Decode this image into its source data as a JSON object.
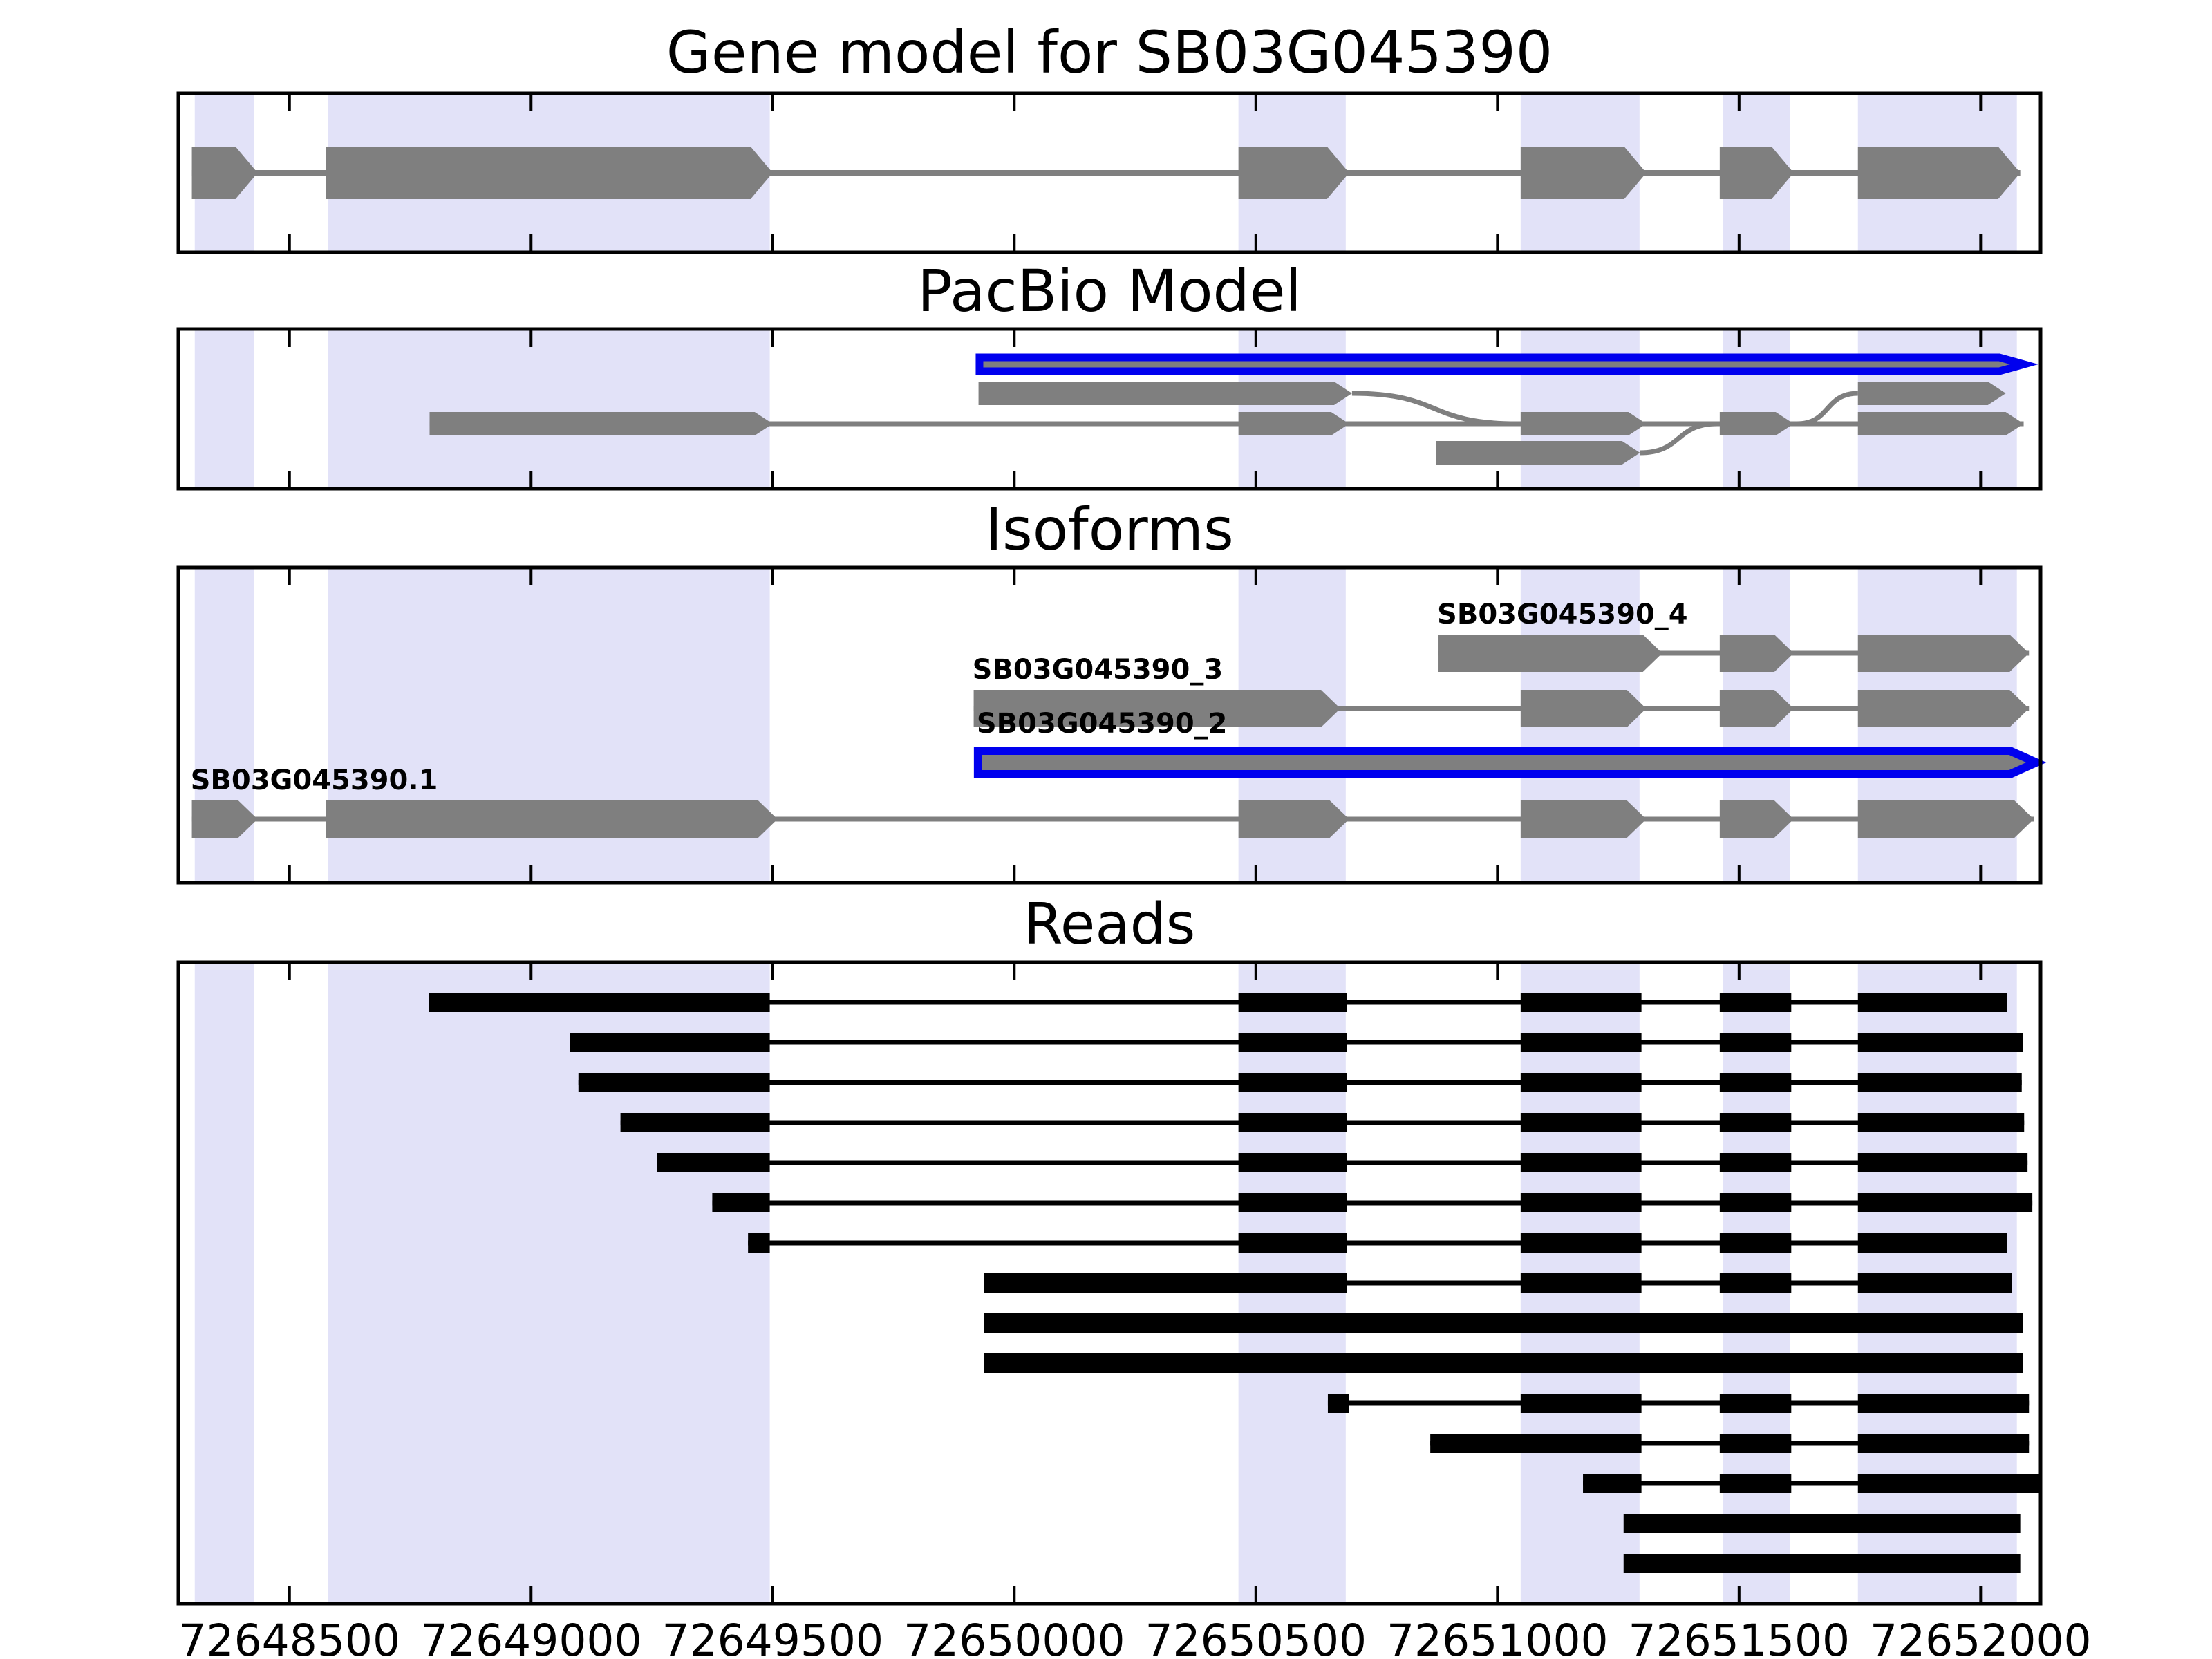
{
  "chart_data": {
    "type": "genomic-track-plot",
    "title": "Gene model for SB03G045390",
    "track_titles": [
      "Gene model for SB03G045390",
      "PacBio Model",
      "Isoforms",
      "Reads"
    ],
    "x_axis": {
      "xlim": [
        72648270,
        72652124
      ],
      "ticks": [
        72648500,
        72649000,
        72649500,
        72650000,
        72650500,
        72651000,
        72651500,
        72652000
      ],
      "tick_labels": [
        "72648500",
        "72649000",
        "72649500",
        "72650000",
        "72650500",
        "72651000",
        "72651500",
        "72652000"
      ]
    },
    "highlight_regions": [
      [
        72648304,
        72648426
      ],
      [
        72648580,
        72649494
      ],
      [
        72650464,
        72650686
      ],
      [
        72651048,
        72651294
      ],
      [
        72651467,
        72651606
      ],
      [
        72651746,
        72652075
      ]
    ],
    "gene_model": {
      "name": "SB03G045390",
      "exons": [
        [
          72648298,
          72648434
        ],
        [
          72648575,
          72649500
        ],
        [
          72650464,
          72650693
        ],
        [
          72651048,
          72651308
        ],
        [
          72651460,
          72651613
        ],
        [
          72651746,
          72652082
        ]
      ]
    },
    "pacbio_model": {
      "transcripts": [
        {
          "id": "pacbio-selected",
          "row": 0,
          "highlight": true,
          "draw_line": false,
          "exons": [
            [
              72649928,
              72652090
            ]
          ]
        },
        {
          "id": "pacbio-alt-a",
          "row": 1,
          "highlight": false,
          "draw_line": false,
          "exons": [
            [
              72649926,
              72650699
            ],
            [
              72651746,
              72652052
            ]
          ]
        },
        {
          "id": "pacbio-main",
          "row": 2,
          "highlight": false,
          "draw_line": true,
          "exons": [
            [
              72648790,
              72649500
            ],
            [
              72650464,
              72650693
            ],
            [
              72651048,
              72651308
            ],
            [
              72651460,
              72651613
            ],
            [
              72651746,
              72652089
            ]
          ]
        },
        {
          "id": "pacbio-alt-b",
          "row": 3,
          "highlight": false,
          "draw_line": false,
          "exons": [
            [
              72650873,
              72651295
            ]
          ]
        }
      ],
      "splice_curves": [
        {
          "from_bp": 72650699,
          "from_row": 1,
          "to_bp": 72651040,
          "to_row": 2
        },
        {
          "from_bp": 72651295,
          "from_row": 3,
          "to_bp": 72651455,
          "to_row": 2
        },
        {
          "from_bp": 72651620,
          "from_row": 2,
          "to_bp": 72651746,
          "to_row": 1
        }
      ]
    },
    "isoforms": [
      {
        "label": "SB03G045390_4",
        "highlight": false,
        "exons": [
          [
            72650878,
            72651341
          ],
          [
            72651460,
            72651613
          ],
          [
            72651746,
            72652100
          ]
        ]
      },
      {
        "label": "SB03G045390_3",
        "highlight": false,
        "exons": [
          [
            72649916,
            72650675
          ],
          [
            72651048,
            72651308
          ],
          [
            72651460,
            72651613
          ],
          [
            72651746,
            72652100
          ]
        ]
      },
      {
        "label": "SB03G045390_2",
        "highlight": true,
        "exons": [
          [
            72649925,
            72652115
          ]
        ]
      },
      {
        "label": "SB03G045390.1",
        "highlight": false,
        "exons": [
          [
            72648298,
            72648434
          ],
          [
            72648575,
            72649510
          ],
          [
            72650464,
            72650693
          ],
          [
            72651048,
            72651308
          ],
          [
            72651460,
            72651613
          ],
          [
            72651746,
            72652110
          ]
        ]
      }
    ],
    "reads": [
      {
        "blocks": [
          [
            72648788,
            72649494
          ],
          [
            72650464,
            72650688
          ],
          [
            72651048,
            72651298
          ],
          [
            72651460,
            72651608
          ],
          [
            72651746,
            72652055
          ]
        ]
      },
      {
        "blocks": [
          [
            72649080,
            72649494
          ],
          [
            72650464,
            72650688
          ],
          [
            72651048,
            72651298
          ],
          [
            72651460,
            72651608
          ],
          [
            72651746,
            72652088
          ]
        ]
      },
      {
        "blocks": [
          [
            72649098,
            72649494
          ],
          [
            72650464,
            72650688
          ],
          [
            72651048,
            72651298
          ],
          [
            72651460,
            72651608
          ],
          [
            72651746,
            72652085
          ]
        ]
      },
      {
        "blocks": [
          [
            72649185,
            72649494
          ],
          [
            72650464,
            72650688
          ],
          [
            72651048,
            72651298
          ],
          [
            72651460,
            72651608
          ],
          [
            72651746,
            72652090
          ]
        ]
      },
      {
        "blocks": [
          [
            72649261,
            72649494
          ],
          [
            72650464,
            72650688
          ],
          [
            72651048,
            72651298
          ],
          [
            72651460,
            72651608
          ],
          [
            72651746,
            72652097
          ]
        ]
      },
      {
        "blocks": [
          [
            72649375,
            72649494
          ],
          [
            72650464,
            72650688
          ],
          [
            72651048,
            72651298
          ],
          [
            72651460,
            72651608
          ],
          [
            72651746,
            72652107
          ]
        ]
      },
      {
        "blocks": [
          [
            72649449,
            72649494
          ],
          [
            72650464,
            72650688
          ],
          [
            72651048,
            72651298
          ],
          [
            72651460,
            72651608
          ],
          [
            72651746,
            72652055
          ]
        ]
      },
      {
        "blocks": [
          [
            72649938,
            72650688
          ],
          [
            72651048,
            72651298
          ],
          [
            72651460,
            72651608
          ],
          [
            72651746,
            72652065
          ]
        ]
      },
      {
        "blocks": [
          [
            72649938,
            72652088
          ]
        ]
      },
      {
        "blocks": [
          [
            72649938,
            72652088
          ]
        ]
      },
      {
        "blocks": [
          [
            72650649,
            72650692
          ],
          [
            72651048,
            72651298
          ],
          [
            72651460,
            72651608
          ],
          [
            72651746,
            72652100
          ]
        ]
      },
      {
        "blocks": [
          [
            72650861,
            72651298
          ],
          [
            72651460,
            72651608
          ],
          [
            72651746,
            72652100
          ]
        ]
      },
      {
        "blocks": [
          [
            72651177,
            72651298
          ],
          [
            72651460,
            72651608
          ],
          [
            72651746,
            72652124
          ]
        ]
      },
      {
        "blocks": [
          [
            72651261,
            72652082
          ]
        ]
      },
      {
        "blocks": [
          [
            72651261,
            72652082
          ]
        ]
      }
    ]
  },
  "colors": {
    "background": "#ffffff",
    "highlight_band": "#e2e2f8",
    "exon_fill": "#7f7f7f",
    "intron_line": "#7f7f7f",
    "selected_outline": "#0000ee",
    "read_fill": "#000000",
    "frame": "#000000",
    "text": "#000000"
  }
}
